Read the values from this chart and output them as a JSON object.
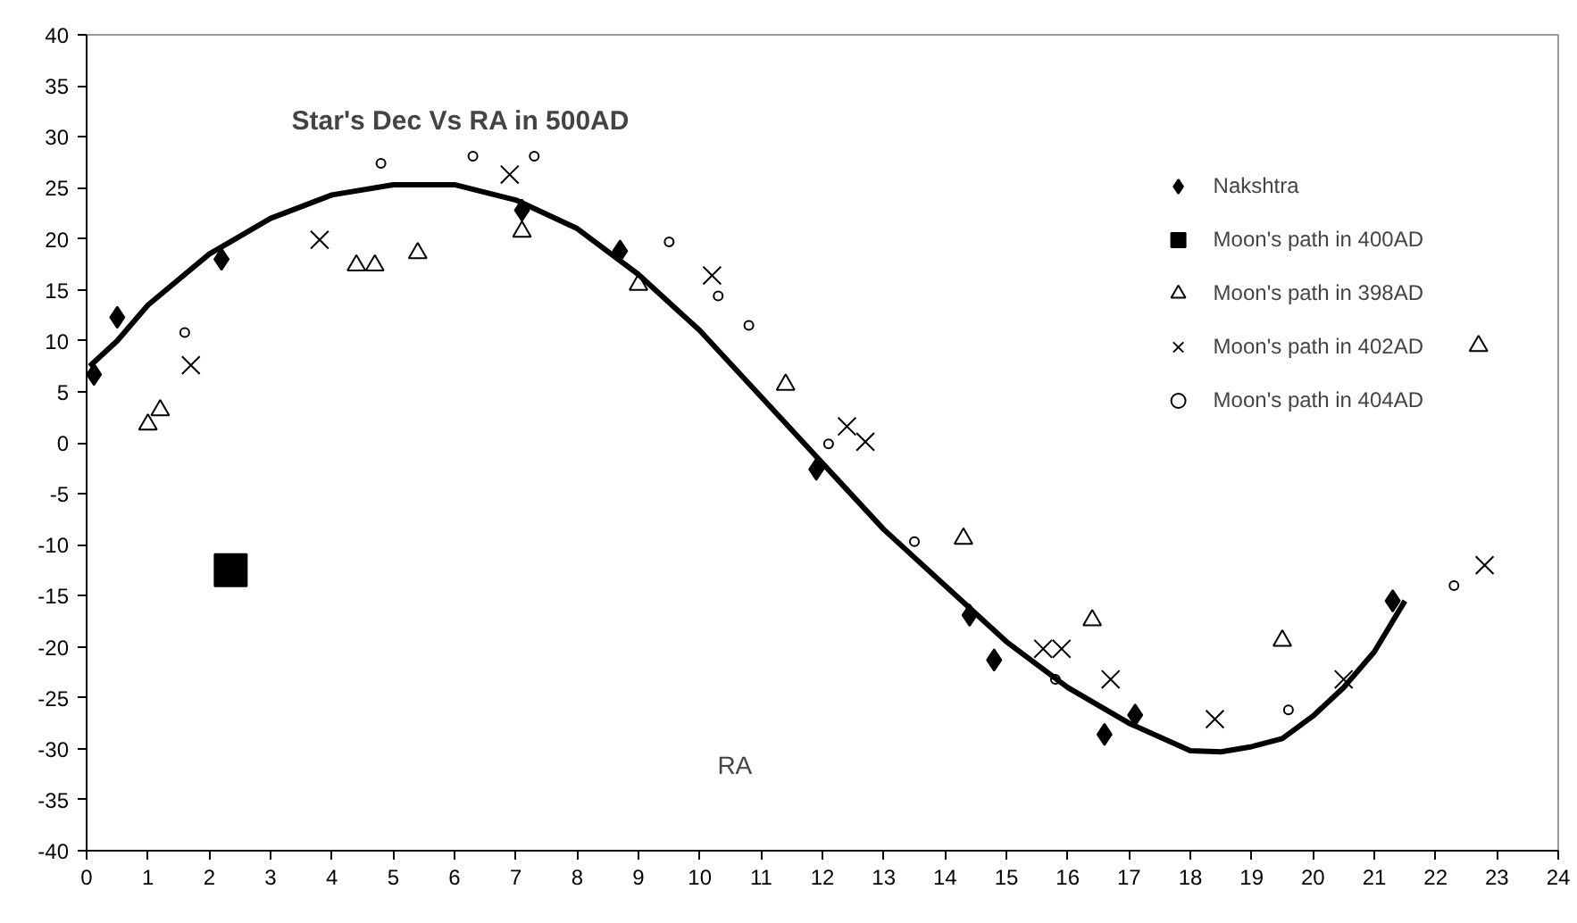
{
  "chart_data": {
    "type": "scatter",
    "title": "Star's Dec Vs RA in 500AD",
    "xlabel": "RA",
    "xlim": [
      0,
      24
    ],
    "ylim": [
      -40,
      40
    ],
    "xticks": [
      0,
      1,
      2,
      3,
      4,
      5,
      6,
      7,
      8,
      9,
      10,
      11,
      12,
      13,
      14,
      15,
      16,
      17,
      18,
      19,
      20,
      21,
      22,
      23,
      24
    ],
    "yticks": [
      -40,
      -35,
      -30,
      -25,
      -20,
      -15,
      -10,
      -5,
      0,
      5,
      10,
      15,
      20,
      25,
      30,
      35,
      40
    ],
    "grid": false,
    "legend": "top right",
    "series": [
      {
        "name": "Nakshtra",
        "color": "#000000",
        "marker": "diamond",
        "x": [
          0.12,
          0.5,
          2.2,
          7.1,
          8.7,
          11.9,
          14.4,
          14.8,
          16.6,
          17.1,
          21.3
        ],
        "values": [
          6.7,
          12.3,
          18,
          22.8,
          18.8,
          -2.6,
          -16.9,
          -21.3,
          -28.6,
          -26.7,
          -15.5
        ]
      },
      {
        "name": "Moon's path in 400AD",
        "color": "#000000",
        "marker": "square",
        "x": [
          2.35
        ],
        "values": [
          -12.5
        ]
      },
      {
        "name": "Moon's path in 398AD",
        "color": "#000000",
        "marker": "triangle",
        "x": [
          1.0,
          1.2,
          4.4,
          4.7,
          5.4,
          7.1,
          9.0,
          11.4,
          14.3,
          16.4,
          19.5,
          22.7
        ],
        "values": [
          1.8,
          3.2,
          17.4,
          17.4,
          18.6,
          20.7,
          15.5,
          5.7,
          -9.4,
          -17.4,
          -19.4,
          9.5
        ]
      },
      {
        "name": "Moon's path in 402AD",
        "color": "#000000",
        "marker": "cross",
        "x": [
          1.7,
          3.8,
          6.9,
          10.2,
          12.4,
          12.7,
          15.6,
          15.9,
          16.7,
          18.4,
          20.5,
          22.8
        ],
        "values": [
          7.6,
          19.9,
          26.3,
          16.4,
          1.6,
          0.1,
          -20.2,
          -20.2,
          -23.2,
          -27.1,
          -23.2,
          -12
        ]
      },
      {
        "name": "Moon's path in 404AD",
        "color": "#000000",
        "marker": "circle",
        "x": [
          1.6,
          4.8,
          6.3,
          7.3,
          9.5,
          10.3,
          10.8,
          12.1,
          13.5,
          15.8,
          19.6,
          22.3
        ],
        "values": [
          10.8,
          27.4,
          28.1,
          28.1,
          19.7,
          14.4,
          11.5,
          -0.1,
          -9.7,
          -23.2,
          -26.2,
          -14
        ]
      },
      {
        "type": "line",
        "color": "#000000",
        "line_style": "solid",
        "x": [
          0.05,
          0.5,
          1,
          2,
          3,
          4,
          5,
          6,
          7,
          8,
          9,
          10,
          11,
          12,
          13,
          14,
          15,
          16,
          17,
          18,
          18.5,
          19,
          19.5,
          20,
          20.5,
          21,
          21.5
        ],
        "values": [
          7.5,
          10,
          13.5,
          18.5,
          22,
          24.3,
          25.3,
          25.3,
          23.8,
          21,
          16.5,
          11,
          4.5,
          -2,
          -8.5,
          -14,
          -19.5,
          -24,
          -27.5,
          -30.2,
          -30.3,
          -29.8,
          -29,
          -26.8,
          -24,
          -20.5,
          -15.5
        ]
      }
    ]
  }
}
